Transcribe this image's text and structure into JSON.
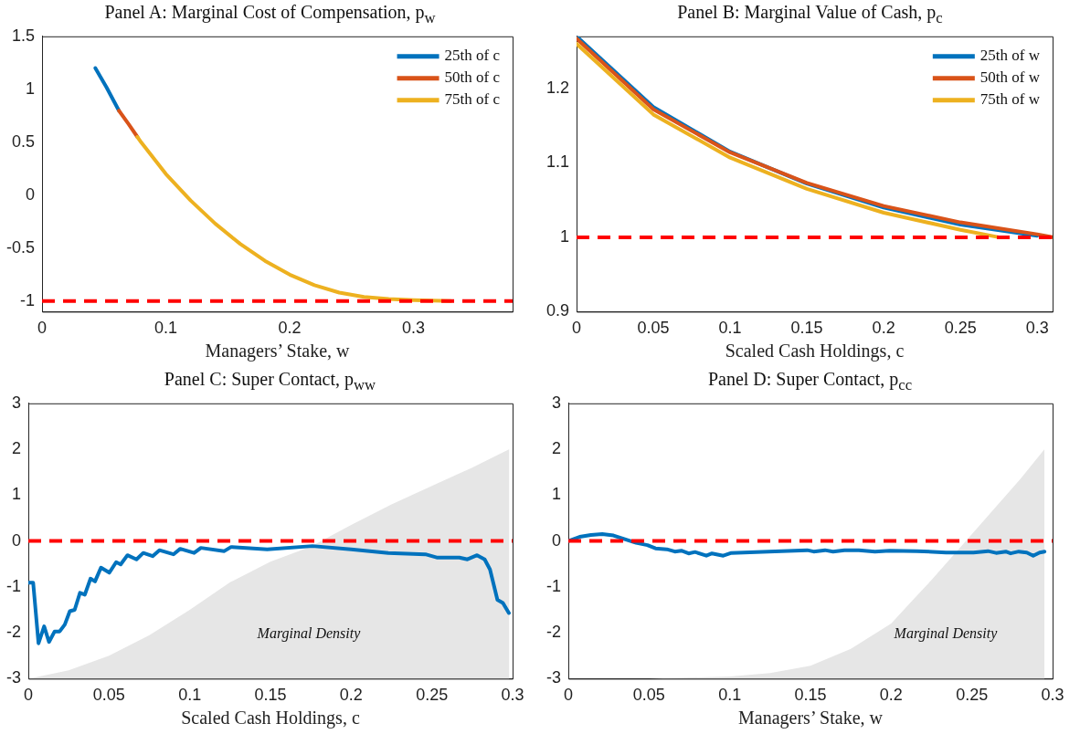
{
  "chart_data": [
    {
      "type": "line",
      "title": "Panel A: Marginal Cost of Compensation, p$_{w}$",
      "xlabel": "Managers’ Stake, w",
      "xlim": [
        0,
        0.38
      ],
      "xticks": [
        0,
        0.1,
        0.2,
        0.3
      ],
      "ylim": [
        -1.1,
        1.5
      ],
      "yticks": [
        -1,
        -0.5,
        0,
        0.5,
        1,
        1.5
      ],
      "legend": "top right",
      "ref_lines": [
        {
          "axis": "y",
          "value": -1,
          "color": "#ff0000",
          "line_style": "dashed"
        }
      ],
      "series": [
        {
          "name": "25th of c",
          "color": "#0072bd",
          "x": [
            0.043,
            0.052,
            0.062
          ],
          "values": [
            1.2,
            1.02,
            0.8
          ]
        },
        {
          "name": "50th of c",
          "color": "#d95319",
          "x": [
            0.062,
            0.07,
            0.077
          ],
          "values": [
            0.8,
            0.67,
            0.55
          ]
        },
        {
          "name": "75th of c",
          "color": "#edb120",
          "x": [
            0.077,
            0.08,
            0.1,
            0.12,
            0.14,
            0.16,
            0.18,
            0.2,
            0.22,
            0.24,
            0.26,
            0.28,
            0.3,
            0.33
          ],
          "values": [
            0.55,
            0.5,
            0.2,
            -0.05,
            -0.27,
            -0.46,
            -0.62,
            -0.75,
            -0.85,
            -0.92,
            -0.96,
            -0.98,
            -0.99,
            -1
          ]
        }
      ]
    },
    {
      "type": "line",
      "title": "Panel B: Marginal Value of Cash, p$_{c}$",
      "xlabel": "Scaled Cash Holdings, c",
      "xlim": [
        0,
        0.31
      ],
      "xticks": [
        0,
        0.05,
        0.1,
        0.15,
        0.2,
        0.25,
        0.3
      ],
      "ylim": [
        0.9,
        1.27
      ],
      "yticks": [
        0.9,
        1,
        1.1,
        1.2
      ],
      "legend": "top right",
      "ref_lines": [
        {
          "axis": "y",
          "value": 1,
          "color": "#ff0000",
          "line_style": "dashed"
        }
      ],
      "series": [
        {
          "name": "25th of w",
          "color": "#0072bd",
          "x": [
            0,
            0.05,
            0.1,
            0.15,
            0.2,
            0.25,
            0.3
          ],
          "values": [
            1.27,
            1.175,
            1.115,
            1.072,
            1.04,
            1.017,
            1.002
          ]
        },
        {
          "name": "50th of w",
          "color": "#d95319",
          "x": [
            0,
            0.05,
            0.1,
            0.15,
            0.2,
            0.25,
            0.3,
            0.31
          ],
          "values": [
            1.267,
            1.172,
            1.114,
            1.073,
            1.042,
            1.02,
            1.004,
            1
          ]
        },
        {
          "name": "75th of w",
          "color": "#edb120",
          "x": [
            0,
            0.05,
            0.1,
            0.15,
            0.2,
            0.25,
            0.275
          ],
          "values": [
            1.26,
            1.165,
            1.107,
            1.065,
            1.033,
            1.01,
            1
          ]
        }
      ]
    },
    {
      "type": "line",
      "title": "Panel C: Super Contact, p$_{ww}$",
      "xlabel": "Scaled Cash Holdings, c",
      "xlim": [
        0,
        0.3
      ],
      "xticks": [
        0,
        0.05,
        0.1,
        0.15,
        0.2,
        0.25,
        0.3
      ],
      "ylim": [
        -3,
        3
      ],
      "yticks": [
        -3,
        -2,
        -1,
        0,
        1,
        2,
        3
      ],
      "annotations": [
        "Marginal Density"
      ],
      "ref_lines": [
        {
          "axis": "y",
          "value": 0,
          "color": "#ff0000",
          "line_style": "dashed"
        }
      ],
      "series": [
        {
          "type": "area",
          "color": "#e6e6e6",
          "x": [
            0,
            0.025,
            0.05,
            0.075,
            0.1,
            0.125,
            0.15,
            0.175,
            0.2,
            0.225,
            0.25,
            0.275,
            0.298,
            0.298
          ],
          "values": [
            -3,
            -2.82,
            -2.5,
            -2.05,
            -1.5,
            -0.9,
            -0.45,
            -0.12,
            0.35,
            0.8,
            1.2,
            1.6,
            2,
            -3
          ]
        },
        {
          "color": "#0072bd",
          "x": [
            0,
            0.003,
            0.0063,
            0.0098,
            0.0128,
            0.0163,
            0.0194,
            0.0226,
            0.0257,
            0.0287,
            0.032,
            0.035,
            0.0385,
            0.0413,
            0.045,
            0.0502,
            0.0544,
            0.0572,
            0.0614,
            0.067,
            0.0712,
            0.077,
            0.0812,
            0.0899,
            0.0941,
            0.1027,
            0.1069,
            0.1214,
            0.1256,
            0.148,
            0.176,
            0.2,
            0.223,
            0.246,
            0.253,
            0.267,
            0.272,
            0.278,
            0.2827,
            0.286,
            0.2906,
            0.294,
            0.2977
          ],
          "values": [
            -0.91,
            -0.91,
            -2.23,
            -1.86,
            -2.2,
            -1.97,
            -1.97,
            -1.82,
            -1.53,
            -1.5,
            -1.13,
            -1.17,
            -0.82,
            -0.88,
            -0.58,
            -0.69,
            -0.46,
            -0.51,
            -0.31,
            -0.4,
            -0.26,
            -0.33,
            -0.2,
            -0.29,
            -0.17,
            -0.26,
            -0.15,
            -0.22,
            -0.13,
            -0.18,
            -0.11,
            -0.18,
            -0.26,
            -0.29,
            -0.36,
            -0.36,
            -0.4,
            -0.31,
            -0.4,
            -0.62,
            -1.28,
            -1.35,
            -1.57
          ]
        }
      ]
    },
    {
      "type": "line",
      "title": "Panel D: Super Contact, p$_{cc}$",
      "xlabel": "Managers’ Stake, w",
      "xlim": [
        0,
        0.3
      ],
      "xticks": [
        0,
        0.05,
        0.1,
        0.15,
        0.2,
        0.25,
        0.3
      ],
      "ylim": [
        -3,
        3
      ],
      "yticks": [
        -3,
        -2,
        -1,
        0,
        1,
        2,
        3
      ],
      "annotations": [
        "Marginal Density"
      ],
      "ref_lines": [
        {
          "axis": "y",
          "value": 0,
          "color": "#ff0000",
          "line_style": "dashed"
        }
      ],
      "series": [
        {
          "type": "area",
          "color": "#e6e6e6",
          "x": [
            0,
            0.05,
            0.1,
            0.125,
            0.15,
            0.175,
            0.2,
            0.213,
            0.225,
            0.24,
            0.26,
            0.28,
            0.295,
            0.295
          ],
          "values": [
            -3,
            -3,
            -2.95,
            -2.88,
            -2.72,
            -2.35,
            -1.8,
            -1.3,
            -0.85,
            -0.25,
            0.55,
            1.35,
            2,
            -3
          ]
        },
        {
          "color": "#0072bd",
          "x": [
            0,
            0.007,
            0.014,
            0.021,
            0.028,
            0.035,
            0.042,
            0.049,
            0.054,
            0.061,
            0.066,
            0.07,
            0.0745,
            0.0785,
            0.0855,
            0.089,
            0.096,
            0.101,
            0.124,
            0.148,
            0.152,
            0.159,
            0.164,
            0.171,
            0.18,
            0.19,
            0.199,
            0.216,
            0.234,
            0.251,
            0.26,
            0.265,
            0.271,
            0.274,
            0.279,
            0.284,
            0.288,
            0.292,
            0.295
          ],
          "values": [
            0,
            0.09,
            0.13,
            0.15,
            0.12,
            0.04,
            -0.04,
            -0.09,
            -0.16,
            -0.18,
            -0.23,
            -0.21,
            -0.27,
            -0.24,
            -0.32,
            -0.27,
            -0.32,
            -0.26,
            -0.23,
            -0.2,
            -0.23,
            -0.2,
            -0.23,
            -0.2,
            -0.2,
            -0.23,
            -0.21,
            -0.22,
            -0.25,
            -0.25,
            -0.22,
            -0.26,
            -0.23,
            -0.27,
            -0.23,
            -0.25,
            -0.32,
            -0.25,
            -0.23
          ]
        }
      ]
    }
  ]
}
